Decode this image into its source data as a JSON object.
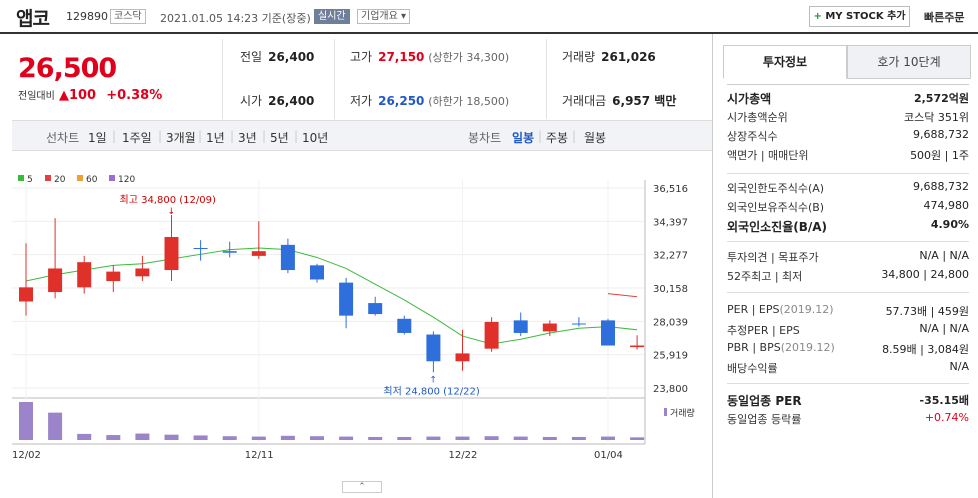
{
  "header": {
    "name": "앱코",
    "code": "129890",
    "market": "코스닥",
    "timestamp": "2021.01.05 14:23 기준(장중)",
    "live": "실시간",
    "overview": "기업개요",
    "mystock": "MY STOCK 추가",
    "quick_order": "빠른주문"
  },
  "summary": {
    "price": "26,500",
    "change_label": "전일대비",
    "change": "100",
    "change_pct": "+0.38%",
    "prev_close_label": "전일",
    "prev_close": "26,400",
    "high_label": "고가",
    "high": "27,150",
    "upper_limit": "(상한가 34,300)",
    "volume_label": "거래량",
    "volume": "261,026",
    "open_label": "시가",
    "open": "26,400",
    "low_label": "저가",
    "low": "26,250",
    "lower_limit": "(하한가 18,500)",
    "amount_label": "거래대금",
    "amount": "6,957 백만"
  },
  "periods": {
    "line_chart": "선차트",
    "items": [
      "1일",
      "1주일",
      "3개월",
      "1년",
      "3년",
      "5년",
      "10년"
    ],
    "candle_chart": "봉차트",
    "candles": [
      "일봉",
      "주봉",
      "월봉"
    ],
    "active_candle": "일봉"
  },
  "legend": [
    {
      "label": "5",
      "color": "#3cba3c"
    },
    {
      "label": "20",
      "color": "#e04040"
    },
    {
      "label": "60",
      "color": "#f0a030"
    },
    {
      "label": "120",
      "color": "#9b6fcf"
    }
  ],
  "chart_data": {
    "type": "candlestick",
    "y_ticks": [
      "36,516",
      "34,397",
      "32,277",
      "30,158",
      "28,039",
      "25,919",
      "23,800"
    ],
    "ylim": [
      23800,
      36516
    ],
    "x_ticks": [
      "12/02",
      "12/11",
      "12/22",
      "01/04"
    ],
    "high_annotation": "최고 34,800 (12/09)",
    "low_annotation": "최저 24,800 (12/22)",
    "volume_label": "거래량",
    "candles": [
      {
        "o": 29300,
        "h": 33000,
        "l": 28400,
        "c": 30200
      },
      {
        "o": 29900,
        "h": 34600,
        "l": 29500,
        "c": 31400
      },
      {
        "o": 30200,
        "h": 32200,
        "l": 29800,
        "c": 31800
      },
      {
        "o": 30600,
        "h": 31600,
        "l": 29900,
        "c": 31200
      },
      {
        "o": 30900,
        "h": 32200,
        "l": 30600,
        "c": 31400
      },
      {
        "o": 31300,
        "h": 34800,
        "l": 30600,
        "c": 33400
      },
      {
        "o": 32700,
        "h": 33200,
        "l": 31900,
        "c": 32700
      },
      {
        "o": 32500,
        "h": 33100,
        "l": 32100,
        "c": 32400
      },
      {
        "o": 32200,
        "h": 34400,
        "l": 32000,
        "c": 32500
      },
      {
        "o": 32900,
        "h": 33300,
        "l": 31100,
        "c": 31300
      },
      {
        "o": 31600,
        "h": 31700,
        "l": 30500,
        "c": 30700
      },
      {
        "o": 30500,
        "h": 30800,
        "l": 27600,
        "c": 28400
      },
      {
        "o": 29200,
        "h": 29600,
        "l": 28400,
        "c": 28500
      },
      {
        "o": 28200,
        "h": 28400,
        "l": 27200,
        "c": 27300
      },
      {
        "o": 27200,
        "h": 27400,
        "l": 24800,
        "c": 25500
      },
      {
        "o": 25500,
        "h": 27500,
        "l": 24900,
        "c": 26000
      },
      {
        "o": 26300,
        "h": 28300,
        "l": 26100,
        "c": 28000
      },
      {
        "o": 28100,
        "h": 28600,
        "l": 27100,
        "c": 27300
      },
      {
        "o": 27400,
        "h": 28100,
        "l": 27100,
        "c": 27900
      },
      {
        "o": 27900,
        "h": 28300,
        "l": 27700,
        "c": 27900
      },
      {
        "o": 28100,
        "h": 28200,
        "l": 26500,
        "c": 26500
      },
      {
        "o": 26400,
        "h": 27150,
        "l": 26250,
        "c": 26500
      }
    ],
    "ma5": [
      30600,
      31000,
      31300,
      31600,
      31700,
      32000,
      32300,
      32600,
      32700,
      32600,
      32100,
      31400,
      30400,
      29400,
      28300,
      27100,
      26600,
      26900,
      27300,
      27600,
      27700,
      27500
    ],
    "ma20": [
      null,
      null,
      null,
      null,
      null,
      null,
      null,
      null,
      null,
      null,
      null,
      null,
      null,
      null,
      null,
      null,
      null,
      null,
      null,
      null,
      29800,
      29600
    ],
    "volume": [
      100,
      72,
      16,
      13,
      17,
      14,
      12,
      10,
      9,
      11,
      10,
      9,
      8,
      8,
      9,
      9,
      10,
      9,
      8,
      8,
      9,
      7
    ]
  },
  "panel": {
    "tab_invest": "투자정보",
    "tab_quote": "호가 10단계",
    "g1": [
      {
        "k": "시가총액",
        "v": "2,572억원",
        "kb": true,
        "vb": true
      },
      {
        "k": "시가총액순위",
        "v": "코스닥 351위"
      },
      {
        "k": "상장주식수",
        "v": "9,688,732"
      },
      {
        "k": "액면가 | 매매단위",
        "v": "500원 | 1주"
      }
    ],
    "g2": [
      {
        "k": "외국인한도주식수(A)",
        "v": "9,688,732"
      },
      {
        "k": "외국인보유주식수(B)",
        "v": "474,980"
      },
      {
        "k": "외국인소진율(B/A)",
        "v": "4.90%",
        "kb": true,
        "vb": true
      }
    ],
    "g3": [
      {
        "k": "투자의견 | 목표주가",
        "v": "N/A | N/A"
      },
      {
        "k": "52주최고 | 최저",
        "v": "34,800 | 24,800"
      }
    ],
    "g4": [
      {
        "k": "PER | EPS",
        "kx": "(2019.12)",
        "v": "57.73배 | 459원"
      },
      {
        "k": "추정PER | EPS",
        "v": "N/A | N/A"
      },
      {
        "k": "PBR | BPS",
        "kx": "(2019.12)",
        "v": "8.59배 | 3,084원"
      },
      {
        "k": "배당수익률",
        "v": "N/A"
      }
    ],
    "g5": [
      {
        "k": "동일업종 PER",
        "v": "-35.15배",
        "kb": true,
        "vb": true
      },
      {
        "k": "동일업종 등락률",
        "v": "+0.74%",
        "vred": true
      }
    ]
  }
}
